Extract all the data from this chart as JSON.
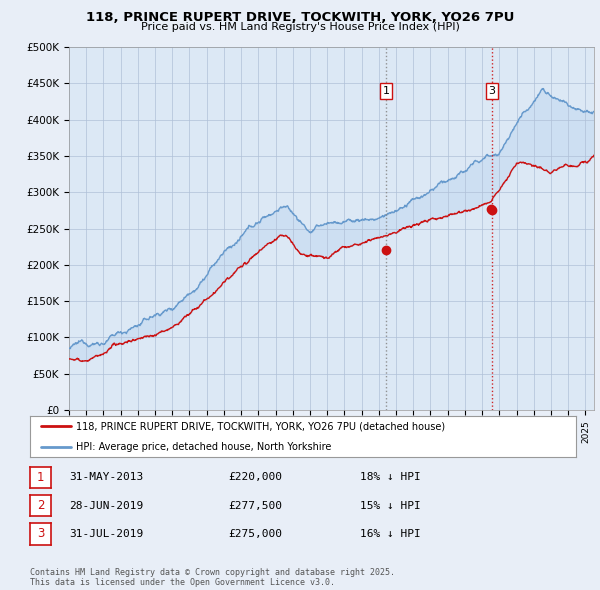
{
  "title": "118, PRINCE RUPERT DRIVE, TOCKWITH, YORK, YO26 7PU",
  "subtitle": "Price paid vs. HM Land Registry's House Price Index (HPI)",
  "ylim": [
    0,
    500000
  ],
  "yticks": [
    0,
    50000,
    100000,
    150000,
    200000,
    250000,
    300000,
    350000,
    400000,
    450000,
    500000
  ],
  "ytick_labels": [
    "£0",
    "£50K",
    "£100K",
    "£150K",
    "£200K",
    "£250K",
    "£300K",
    "£350K",
    "£400K",
    "£450K",
    "£500K"
  ],
  "background_color": "#e8eef7",
  "plot_bg_color": "#dce8f5",
  "hpi_color": "#6699cc",
  "price_color": "#cc1111",
  "fill_color": "#dce8f5",
  "legend_label_price": "118, PRINCE RUPERT DRIVE, TOCKWITH, YORK, YO26 7PU (detached house)",
  "legend_label_hpi": "HPI: Average price, detached house, North Yorkshire",
  "table_rows": [
    {
      "num": "1",
      "date": "31-MAY-2013",
      "price": "£220,000",
      "pct": "18% ↓ HPI"
    },
    {
      "num": "2",
      "date": "28-JUN-2019",
      "price": "£277,500",
      "pct": "15% ↓ HPI"
    },
    {
      "num": "3",
      "date": "31-JUL-2019",
      "price": "£275,000",
      "pct": "16% ↓ HPI"
    }
  ],
  "footer": "Contains HM Land Registry data © Crown copyright and database right 2025.\nThis data is licensed under the Open Government Licence v3.0.",
  "sale1_x": 2013.42,
  "sale1_y": 220000,
  "sale2_x": 2019.49,
  "sale2_y": 277500,
  "sale3_x": 2019.58,
  "sale3_y": 275000,
  "vline1_x": 2013.42,
  "vline2_x": 2019.58,
  "xmin": 1995,
  "xmax": 2025.5
}
